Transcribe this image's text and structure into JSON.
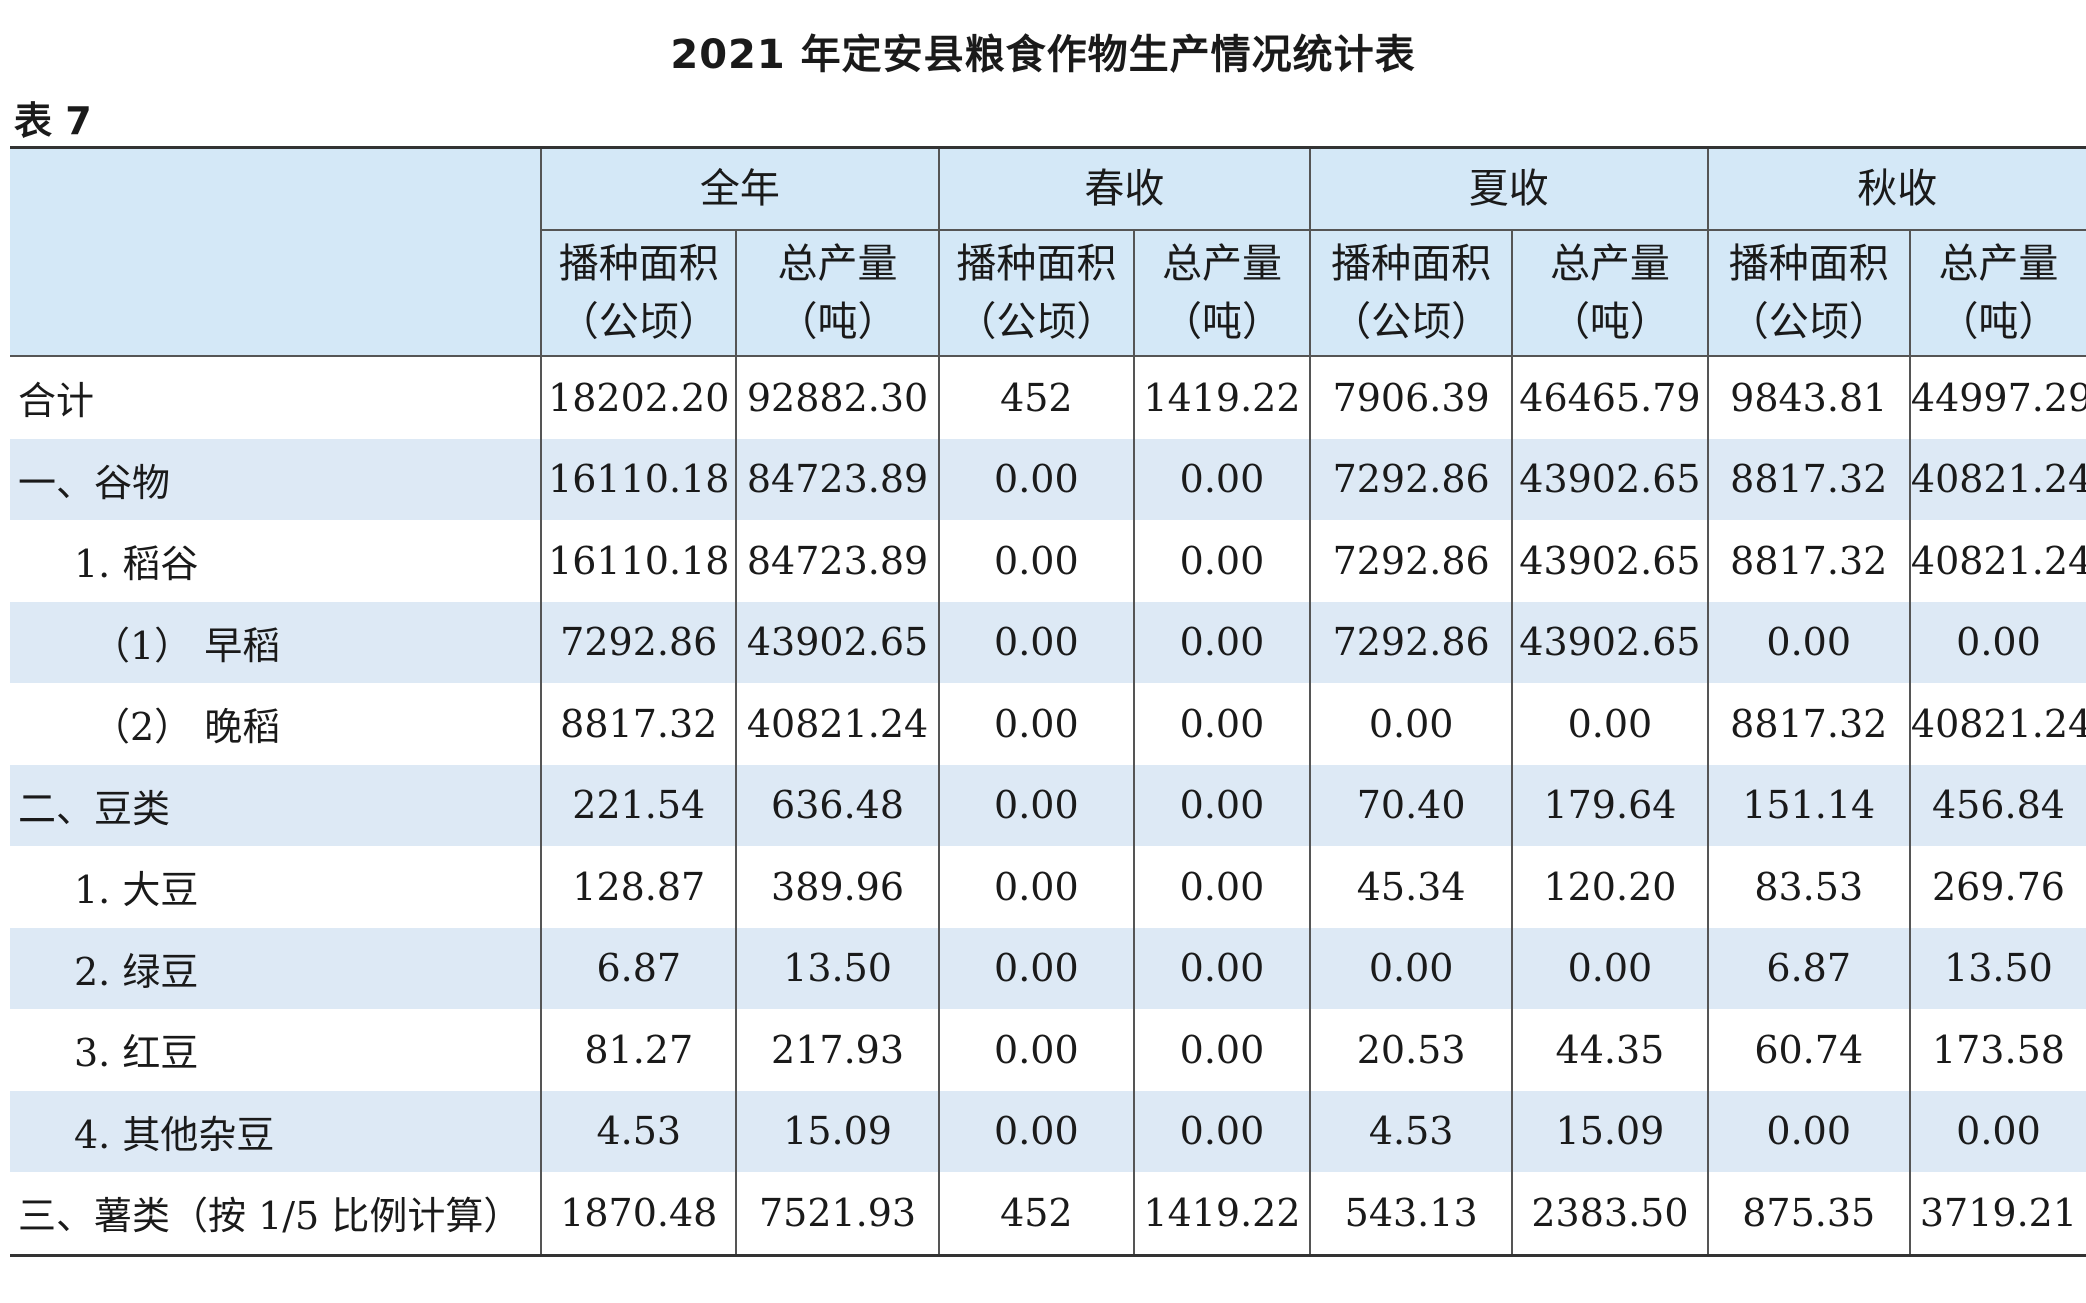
{
  "title": "2021 年定安县粮食作物生产情况统计表",
  "table_no": "表 7",
  "header": {
    "groups": [
      "全年",
      "春收",
      "夏收",
      "秋收"
    ],
    "area_line1": "播种面积",
    "area_line2": "（公顷）",
    "prod_line1": "总产量",
    "prod_line2": "（吨）"
  },
  "rows": [
    {
      "label": "合计",
      "values": [
        "18202.20",
        "92882.30",
        "452",
        "1419.22",
        "7906.39",
        "46465.79",
        "9843.81",
        "44997.29"
      ]
    },
    {
      "label": "一、谷物",
      "values": [
        "16110.18",
        "84723.89",
        "0.00",
        "0.00",
        "7292.86",
        "43902.65",
        "8817.32",
        "40821.24"
      ]
    },
    {
      "label": "1. 稻谷",
      "values": [
        "16110.18",
        "84723.89",
        "0.00",
        "0.00",
        "7292.86",
        "43902.65",
        "8817.32",
        "40821.24"
      ]
    },
    {
      "label": "（1） 早稻",
      "values": [
        "7292.86",
        "43902.65",
        "0.00",
        "0.00",
        "7292.86",
        "43902.65",
        "0.00",
        "0.00"
      ]
    },
    {
      "label": "（2） 晚稻",
      "values": [
        "8817.32",
        "40821.24",
        "0.00",
        "0.00",
        "0.00",
        "0.00",
        "8817.32",
        "40821.24"
      ]
    },
    {
      "label": "二、豆类",
      "values": [
        "221.54",
        "636.48",
        "0.00",
        "0.00",
        "70.40",
        "179.64",
        "151.14",
        "456.84"
      ]
    },
    {
      "label": "1. 大豆",
      "values": [
        "128.87",
        "389.96",
        "0.00",
        "0.00",
        "45.34",
        "120.20",
        "83.53",
        "269.76"
      ]
    },
    {
      "label": "2. 绿豆",
      "values": [
        "6.87",
        "13.50",
        "0.00",
        "0.00",
        "0.00",
        "0.00",
        "6.87",
        "13.50"
      ]
    },
    {
      "label": "3. 红豆",
      "values": [
        "81.27",
        "217.93",
        "0.00",
        "0.00",
        "20.53",
        "44.35",
        "60.74",
        "173.58"
      ]
    },
    {
      "label": "4. 其他杂豆",
      "values": [
        "4.53",
        "15.09",
        "0.00",
        "0.00",
        "4.53",
        "15.09",
        "0.00",
        "0.00"
      ]
    },
    {
      "label": "三、薯类（按 1/5 比例计算）",
      "values": [
        "1870.48",
        "7521.93",
        "452",
        "1419.22",
        "543.13",
        "2383.50",
        "875.35",
        "3719.21"
      ]
    }
  ]
}
